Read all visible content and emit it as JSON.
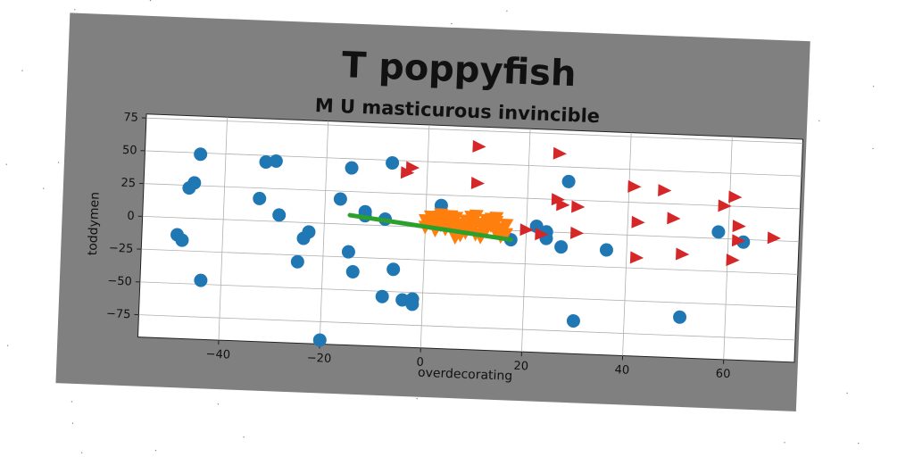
{
  "chart_data": {
    "type": "scatter",
    "title": "T poppyfish",
    "subtitle": "M U masticurous invincible",
    "xlabel": "overdecorating",
    "ylabel": "toddymen",
    "xlim": [
      -56,
      74
    ],
    "ylim": [
      -92,
      78
    ],
    "xticks": [
      -40,
      -20,
      0,
      20,
      40,
      60
    ],
    "yticks": [
      75,
      50,
      25,
      0,
      -25,
      -50,
      -75
    ],
    "xtick_labels": [
      "−40",
      "−20",
      "0",
      "20",
      "40",
      "60"
    ],
    "ytick_labels": [
      "75",
      "50",
      "25",
      "0",
      "−25",
      "−50",
      "−75"
    ],
    "grid": true,
    "legend": "none",
    "series": [
      {
        "marker": "circle",
        "color": "#1f77b4",
        "points": [
          [
            -45,
            49
          ],
          [
            -46,
            27
          ],
          [
            -47,
            23
          ],
          [
            -49,
            -13
          ],
          [
            -48,
            -17
          ],
          [
            -44,
            -47
          ],
          [
            -32,
            45
          ],
          [
            -30,
            46
          ],
          [
            -33,
            17
          ],
          [
            -29,
            5
          ],
          [
            -24,
            -12
          ],
          [
            -23,
            -7
          ],
          [
            -25,
            -30
          ],
          [
            -20,
            -89
          ],
          [
            -17,
            19
          ],
          [
            -15,
            43
          ],
          [
            -15,
            -21
          ],
          [
            -14,
            -36
          ],
          [
            -12,
            10
          ],
          [
            -8,
            5
          ],
          [
            -8,
            -54
          ],
          [
            -7,
            48
          ],
          [
            -6,
            -33
          ],
          [
            -4,
            -56
          ],
          [
            -2,
            -55
          ],
          [
            -2,
            -59
          ],
          [
            -12,
            7
          ],
          [
            3,
            17
          ],
          [
            2,
            8
          ],
          [
            17,
            -7
          ],
          [
            22,
            4
          ],
          [
            24,
            0
          ],
          [
            24,
            -5
          ],
          [
            27,
            -11
          ],
          [
            28,
            39
          ],
          [
            30,
            -67
          ],
          [
            36,
            -12
          ],
          [
            51,
            -61
          ],
          [
            58,
            5
          ],
          [
            63,
            -2
          ]
        ]
      },
      {
        "marker": "triangle-right",
        "color": "#d62728",
        "points": [
          [
            -3,
            45
          ],
          [
            -4,
            41
          ],
          [
            10,
            63
          ],
          [
            10,
            35
          ],
          [
            26,
            60
          ],
          [
            26,
            25
          ],
          [
            27,
            21
          ],
          [
            30,
            20
          ],
          [
            20,
            1
          ],
          [
            23,
            -2
          ],
          [
            30,
            0
          ],
          [
            41,
            37
          ],
          [
            47,
            35
          ],
          [
            42,
            10
          ],
          [
            42,
            -17
          ],
          [
            49,
            14
          ],
          [
            51,
            -13
          ],
          [
            59,
            25
          ],
          [
            61,
            32
          ],
          [
            62,
            10
          ],
          [
            62,
            -1
          ],
          [
            61,
            -16
          ],
          [
            69,
            2
          ]
        ]
      },
      {
        "marker": "triangle-down",
        "color": "#ff7f0e",
        "points": [
          [
            0,
            5
          ],
          [
            1,
            3
          ],
          [
            2,
            6
          ],
          [
            3,
            2
          ],
          [
            4,
            7
          ],
          [
            4,
            -1
          ],
          [
            5,
            4
          ],
          [
            6,
            8
          ],
          [
            6,
            0
          ],
          [
            7,
            3
          ],
          [
            8,
            -3
          ],
          [
            8,
            6
          ],
          [
            9,
            1
          ],
          [
            10,
            4
          ],
          [
            10,
            -4
          ],
          [
            11,
            2
          ],
          [
            12,
            7
          ],
          [
            12,
            -1
          ],
          [
            13,
            3
          ],
          [
            14,
            -2
          ],
          [
            14,
            6
          ],
          [
            15,
            1
          ],
          [
            16,
            -3
          ],
          [
            16,
            4
          ],
          [
            2,
            -2
          ],
          [
            5,
            9
          ],
          [
            7,
            -5
          ],
          [
            9,
            9
          ],
          [
            11,
            -6
          ],
          [
            13,
            8
          ],
          [
            3,
            10
          ],
          [
            15,
            -5
          ],
          [
            0,
            0
          ],
          [
            6,
            -7
          ],
          [
            10,
            10
          ],
          [
            4,
            3
          ],
          [
            8,
            1
          ],
          [
            12,
            3
          ],
          [
            1,
            8
          ],
          [
            14,
            9
          ]
        ]
      }
    ],
    "line": {
      "color": "#2ca02c",
      "x": [
        -15,
        17
      ],
      "y": [
        7,
        -7
      ]
    }
  }
}
